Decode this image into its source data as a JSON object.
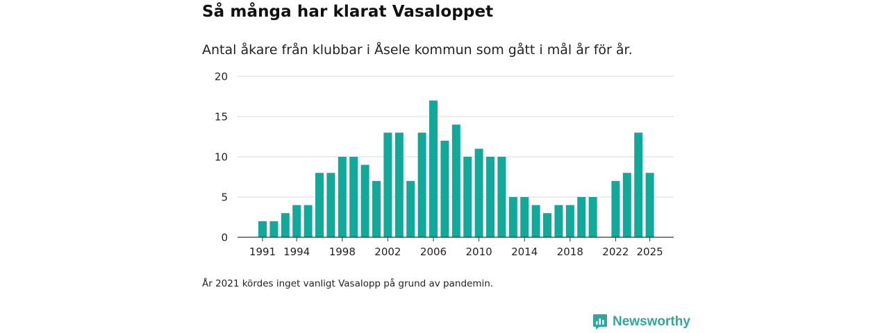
{
  "title": "Så många har klarat Vasaloppet",
  "subtitle": "Antal åkare från klubbar i Åsele kommun som gått i mål år för år.",
  "footnote": "År 2021 kördes inget vanligt Vasalopp på grund av pandemin.",
  "brand": {
    "name": "Newsworthy",
    "icon": "newsworthy-logo-icon"
  },
  "colors": {
    "bar": "#12a89a",
    "grid": "#d9d9d9",
    "axis": "#333333",
    "brand": "#2ea89c"
  },
  "chart_data": {
    "type": "bar",
    "title": "Så många har klarat Vasaloppet",
    "subtitle": "Antal åkare från klubbar i Åsele kommun som gått i mål år för år.",
    "xlabel": "",
    "ylabel": "",
    "categories": [
      1991,
      1992,
      1993,
      1994,
      1995,
      1996,
      1997,
      1998,
      1999,
      2000,
      2001,
      2002,
      2003,
      2004,
      2005,
      2006,
      2007,
      2008,
      2009,
      2010,
      2011,
      2012,
      2013,
      2014,
      2015,
      2016,
      2017,
      2018,
      2019,
      2020,
      2021,
      2022,
      2023,
      2024,
      2025
    ],
    "values": [
      2,
      2,
      3,
      4,
      4,
      8,
      8,
      10,
      10,
      9,
      7,
      13,
      13,
      7,
      13,
      17,
      12,
      14,
      10,
      11,
      10,
      10,
      5,
      5,
      4,
      3,
      4,
      4,
      5,
      5,
      null,
      7,
      8,
      13,
      8
    ],
    "x_tick_labels": [
      "1991",
      "1994",
      "1998",
      "2002",
      "2006",
      "2010",
      "2014",
      "2018",
      "2022",
      "2025"
    ],
    "y_ticks": [
      0,
      5,
      10,
      15,
      20
    ],
    "ylim": [
      0,
      20
    ],
    "grid": true
  }
}
